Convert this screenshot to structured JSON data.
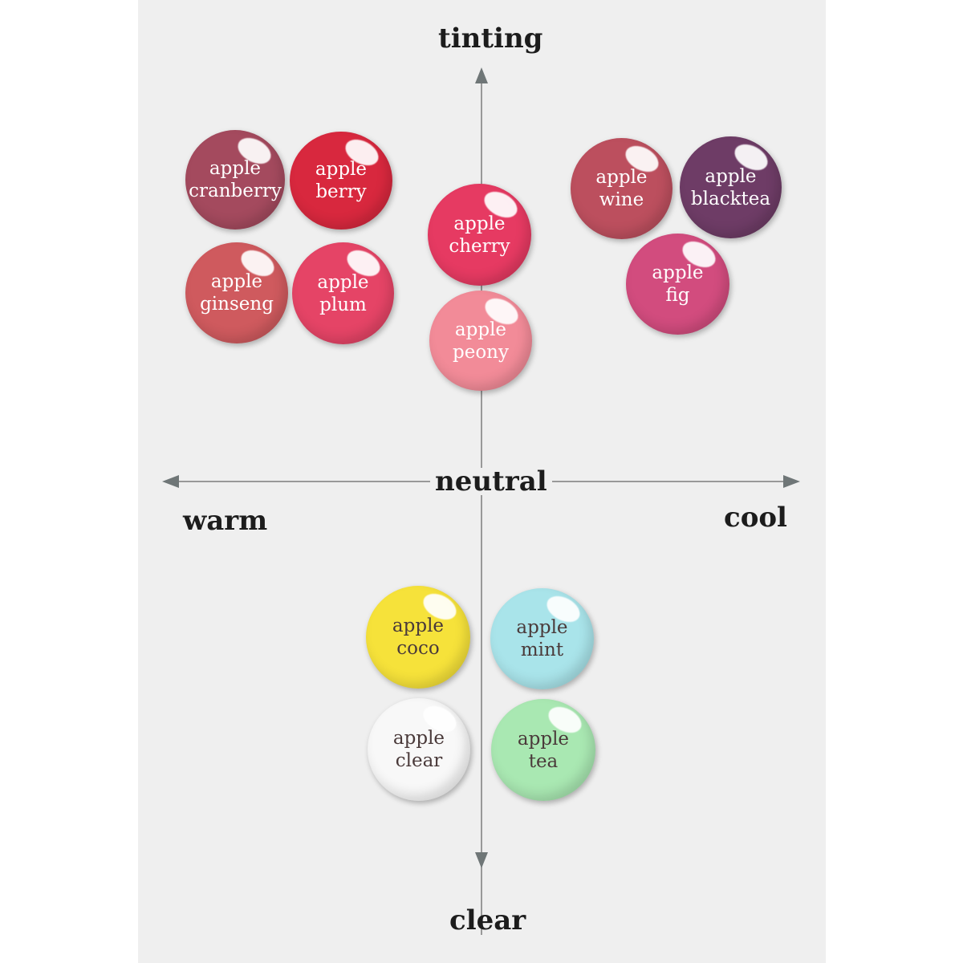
{
  "axes": {
    "top": "tinting",
    "bottom": "clear",
    "left": "warm",
    "right": "cool",
    "center": "neutral"
  },
  "swatches": [
    {
      "line1": "apple",
      "line2": "cranberry",
      "color": "#a44a5e"
    },
    {
      "line1": "apple",
      "line2": "berry",
      "color": "#d8283e"
    },
    {
      "line1": "apple",
      "line2": "ginseng",
      "color": "#cf5a5e"
    },
    {
      "line1": "apple",
      "line2": "plum",
      "color": "#e54466"
    },
    {
      "line1": "apple",
      "line2": "cherry",
      "color": "#e63a62"
    },
    {
      "line1": "apple",
      "line2": "peony",
      "color": "#f28b98"
    },
    {
      "line1": "apple",
      "line2": "wine",
      "color": "#bc4f5e"
    },
    {
      "line1": "apple",
      "line2": "blacktea",
      "color": "#6e3c66"
    },
    {
      "line1": "apple",
      "line2": "fig",
      "color": "#d24c7e"
    },
    {
      "line1": "apple",
      "line2": "coco",
      "color": "#f6e23a"
    },
    {
      "line1": "apple",
      "line2": "mint",
      "color": "#a9e4ea"
    },
    {
      "line1": "apple",
      "line2": "clear",
      "color": "#f8f8f8"
    },
    {
      "line1": "apple",
      "line2": "tea",
      "color": "#a9e8b2"
    }
  ]
}
